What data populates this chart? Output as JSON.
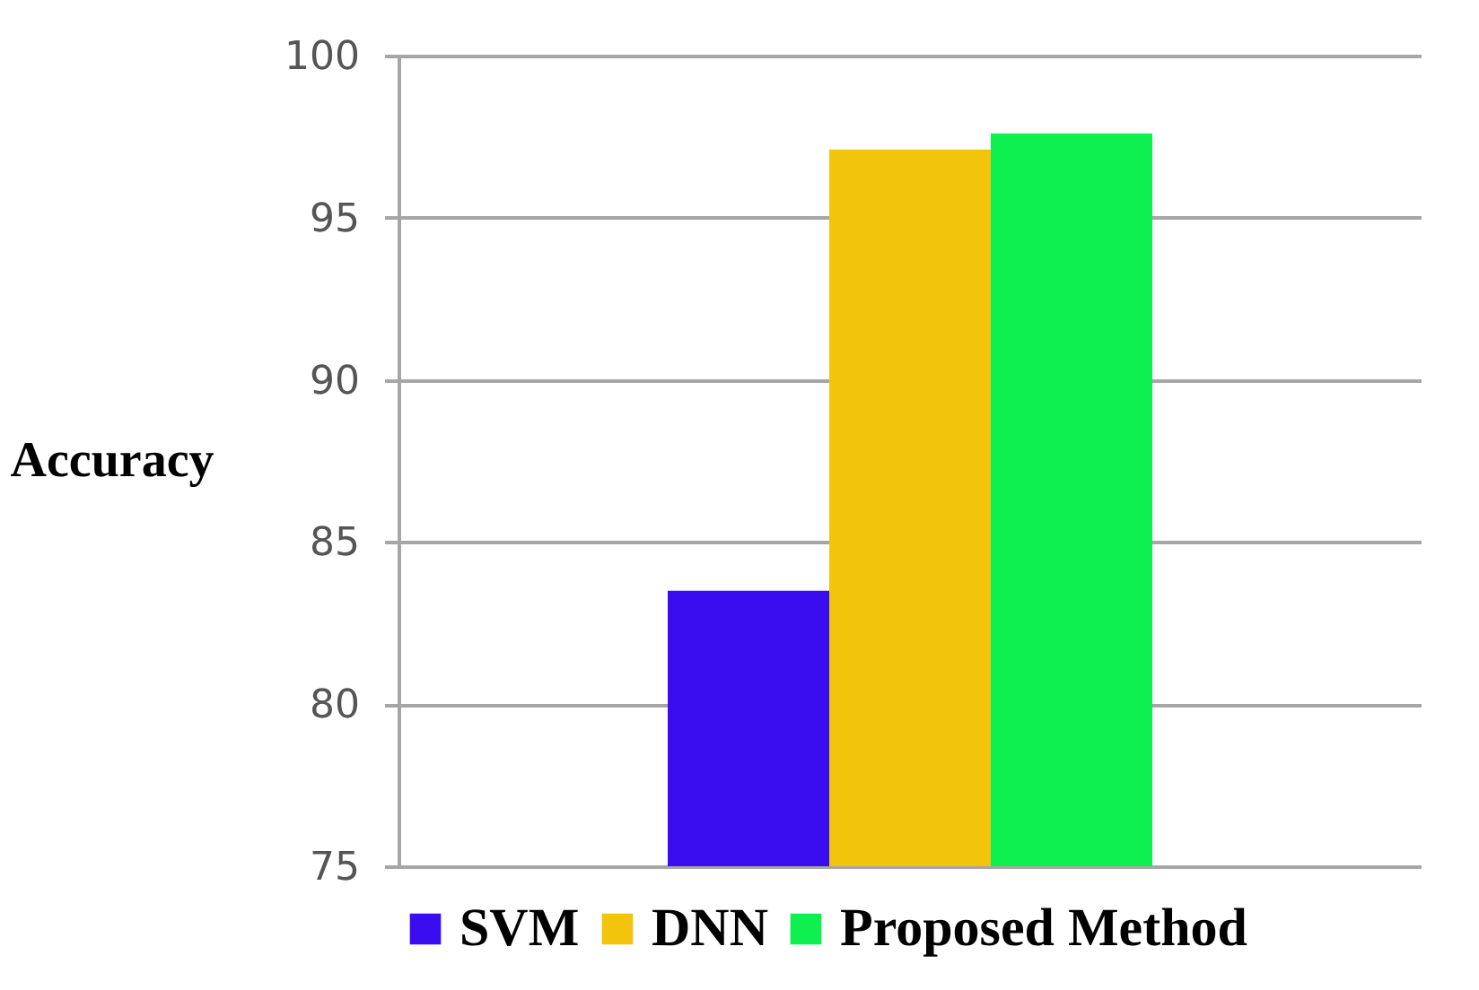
{
  "chart_data": {
    "type": "bar",
    "ylabel": "Accuracy",
    "categories": [
      null
    ],
    "series": [
      {
        "name": "SVM",
        "color": "#3a0cf0",
        "values": [
          83.5
        ]
      },
      {
        "name": "DNN",
        "color": "#f2c40c",
        "values": [
          97.1
        ]
      },
      {
        "name": "Proposed Method",
        "color": "#0ef050",
        "values": [
          97.6
        ]
      }
    ],
    "ylim": [
      75,
      100
    ],
    "yticks": [
      75,
      80,
      85,
      90,
      95,
      100
    ],
    "grid": "y",
    "legend": "bottom"
  }
}
